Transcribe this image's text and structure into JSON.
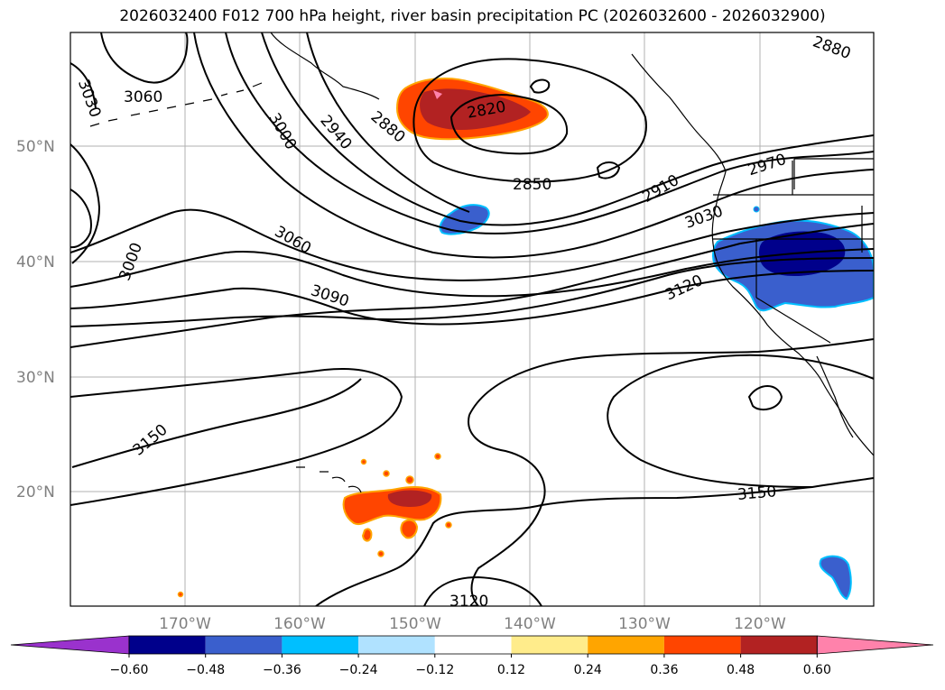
{
  "title": "2026032400 F012 700 hPa height, river basin precipitation PC (2026032600 - 2026032900)",
  "map": {
    "lat_ticks": [
      "50°N",
      "40°N",
      "30°N",
      "20°N"
    ],
    "lon_ticks": [
      "170°W",
      "160°W",
      "150°W",
      "140°W",
      "130°W",
      "120°W"
    ],
    "contour_labels": [
      "3060",
      "3030",
      "3000",
      "2940",
      "2880",
      "2820",
      "2850",
      "2910",
      "2970",
      "3030",
      "3000",
      "3060",
      "3090",
      "3120",
      "3150",
      "3150",
      "3120",
      "2880"
    ]
  },
  "colorbar": {
    "tick_labels": [
      "−0.60",
      "−0.48",
      "−0.36",
      "−0.24",
      "−0.12",
      "0.12",
      "0.24",
      "0.36",
      "0.48",
      "0.60"
    ],
    "colors": [
      "#9a32cd",
      "#00008b",
      "#3a5fcd",
      "#00bfff",
      "#b0e2ff",
      "#ffffff",
      "#ffec8b",
      "#ffa500",
      "#ff4500",
      "#b22222",
      "#ff82ab"
    ]
  }
}
